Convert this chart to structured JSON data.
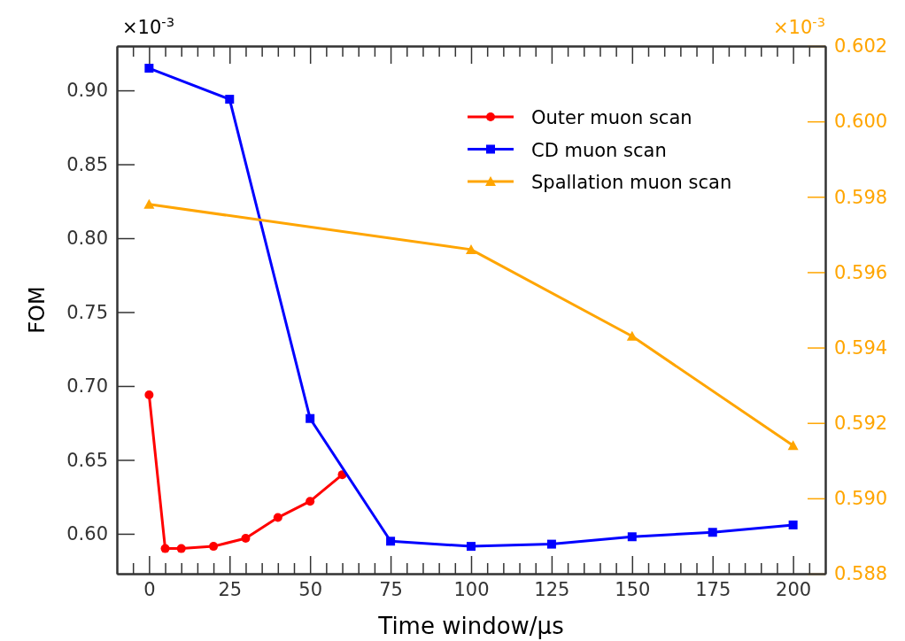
{
  "chart_data": {
    "type": "line",
    "xlabel": "Time window/μs",
    "ylabel": "FOM",
    "annotations": [
      "×10$^{-3}$",
      "×10$^{-3}$"
    ],
    "xlim": [
      -10,
      210
    ],
    "ylim": [
      0.573,
      0.93
    ],
    "y2lim": [
      0.588,
      0.602
    ],
    "xticks": [
      0,
      25,
      50,
      75,
      100,
      125,
      150,
      175,
      200,
      {
        "value": -5,
        "label": null
      },
      {
        "value": 5,
        "label": null
      },
      {
        "value": 10,
        "label": null
      },
      {
        "value": 15,
        "label": null
      },
      {
        "value": 20,
        "label": null
      },
      {
        "value": 30,
        "label": null
      },
      {
        "value": 35,
        "label": null
      },
      {
        "value": 40,
        "label": null
      },
      {
        "value": 45,
        "label": null
      },
      {
        "value": 55,
        "label": null
      },
      {
        "value": 60,
        "label": null
      },
      {
        "value": 65,
        "label": null
      },
      {
        "value": 70,
        "label": null
      },
      {
        "value": 80,
        "label": null
      },
      {
        "value": 85,
        "label": null
      },
      {
        "value": 90,
        "label": null
      },
      {
        "value": 95,
        "label": null
      },
      {
        "value": 105,
        "label": null
      },
      {
        "value": 110,
        "label": null
      },
      {
        "value": 115,
        "label": null
      },
      {
        "value": 120,
        "label": null
      },
      {
        "value": 130,
        "label": null
      },
      {
        "value": 135,
        "label": null
      },
      {
        "value": 140,
        "label": null
      },
      {
        "value": 145,
        "label": null
      },
      {
        "value": 155,
        "label": null
      },
      {
        "value": 160,
        "label": null
      },
      {
        "value": 165,
        "label": null
      },
      {
        "value": 170,
        "label": null
      },
      {
        "value": 180,
        "label": null
      },
      {
        "value": 185,
        "label": null
      },
      {
        "value": 190,
        "label": null
      },
      {
        "value": 195,
        "label": null
      },
      {
        "value": 205,
        "label": null
      }
    ],
    "yticks": [
      {
        "value": 0.6,
        "label": "0.60"
      },
      0.65,
      {
        "value": 0.7,
        "label": "0.70"
      },
      0.75,
      {
        "value": 0.8,
        "label": "0.80"
      },
      0.85,
      {
        "value": 0.9,
        "label": "0.90"
      }
    ],
    "y2ticks": [
      0.588,
      {
        "value": 0.59,
        "label": "0.590"
      },
      0.592,
      0.594,
      0.596,
      0.598,
      {
        "value": 0.6,
        "label": "0.600"
      },
      0.602
    ],
    "legend": "top right",
    "grid": false,
    "series": [
      {
        "name": "Outer muon scan",
        "color": "#ff0000",
        "marker": "circle",
        "x": [
          0,
          5,
          10,
          20,
          30,
          40,
          50,
          60
        ],
        "values": [
          0.694,
          0.59,
          0.59,
          0.5915,
          0.597,
          0.611,
          0.622,
          0.64
        ]
      },
      {
        "name": "CD muon scan",
        "color": "#0000ff",
        "marker": "square",
        "x": [
          0,
          25,
          50,
          75,
          100,
          125,
          150,
          175,
          200
        ],
        "values": [
          0.915,
          0.894,
          0.678,
          0.595,
          0.5915,
          0.593,
          0.598,
          0.601,
          0.606
        ]
      },
      {
        "name": "Spallation muon scan",
        "color": "#ffa500",
        "marker": "triangle",
        "axis": "y2",
        "x": [
          0,
          100,
          150,
          200
        ],
        "values": [
          0.5978,
          0.5966,
          0.5943,
          0.5914
        ]
      }
    ]
  }
}
